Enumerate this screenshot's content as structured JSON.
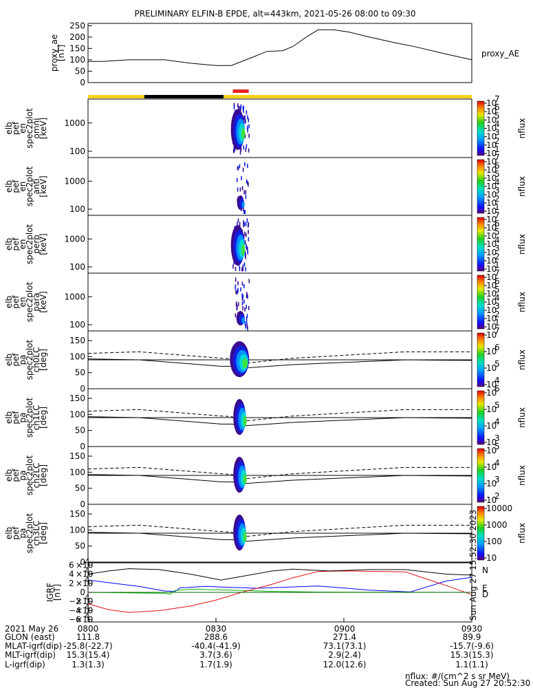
{
  "title": "PRELIMINARY ELFIN-B EPDE, alt=443km, 2021-05-26 08:00 to 09:30",
  "chart_data": [
    {
      "type": "line",
      "panel": "proxy_ae",
      "ylabel_lines": [
        "proxy_ae",
        "[nT]"
      ],
      "right_label": "proxy_AE",
      "ylim": [
        0,
        260
      ],
      "yticks": [
        "0",
        "50",
        "100",
        "150",
        "200",
        "250"
      ],
      "series": [
        {
          "values": [
            [
              0,
              93
            ],
            [
              3,
              93
            ],
            [
              8,
              100
            ],
            [
              15,
              100
            ],
            [
              20,
              85
            ],
            [
              25,
              75
            ],
            [
              28,
              75
            ],
            [
              32,
              110
            ],
            [
              35,
              137
            ],
            [
              38,
              140
            ],
            [
              40,
              158
            ],
            [
              43,
              205
            ],
            [
              45,
              232
            ],
            [
              48,
              232
            ],
            [
              51,
              222
            ],
            [
              55,
              200
            ],
            [
              60,
              175
            ],
            [
              64,
              157
            ],
            [
              70,
              125
            ],
            [
              75,
              100
            ]
          ]
        }
      ],
      "color": "#000000"
    },
    {
      "type": "bar",
      "panel": "orbit-status-bar",
      "segments": [
        {
          "from": 0,
          "to": 11,
          "color": "#f2d21b"
        },
        {
          "from": 11,
          "to": 26.5,
          "color": "#000000"
        },
        {
          "from": 26.5,
          "to": 75,
          "color": "#f2d21b"
        }
      ],
      "marker": {
        "from": 28.3,
        "to": 31.4,
        "color": "#e8251f"
      }
    },
    {
      "type": "heatmap",
      "panel": "spec2plot-omni",
      "ylabel_lines": [
        "elb",
        "pef",
        "en",
        "spec2plot",
        "omni",
        "[keV]"
      ],
      "ylog": true,
      "ylim": [
        60,
        7000
      ],
      "yticks": [
        "100",
        "1000"
      ],
      "colorbar": {
        "label": "nflux",
        "exponents": [
          "1",
          "2",
          "3",
          "4",
          "5",
          "6",
          "7"
        ]
      }
    },
    {
      "type": "heatmap",
      "panel": "spec2plot-anti",
      "ylabel_lines": [
        "elb",
        "pef",
        "en",
        "spec2plot",
        "anti",
        "[keV]"
      ],
      "ylog": true,
      "ylim": [
        60,
        7000
      ],
      "yticks": [
        "100",
        "1000"
      ],
      "colorbar": {
        "label": "nflux",
        "exponents": [
          "1",
          "2",
          "3",
          "4",
          "5",
          "6",
          "7"
        ]
      }
    },
    {
      "type": "heatmap",
      "panel": "spec2plot-perp",
      "ylabel_lines": [
        "elb",
        "pef",
        "en",
        "spec2plot",
        "perp",
        "[keV]"
      ],
      "ylog": true,
      "ylim": [
        60,
        7000
      ],
      "yticks": [
        "100",
        "1000"
      ],
      "colorbar": {
        "label": "nflux",
        "exponents": [
          "1",
          "2",
          "3",
          "4",
          "5",
          "6",
          "7"
        ]
      }
    },
    {
      "type": "heatmap",
      "panel": "spec2plot-para",
      "ylabel_lines": [
        "elb",
        "pef",
        "en",
        "spec2plot",
        "para",
        "[keV]"
      ],
      "ylog": true,
      "ylim": [
        60,
        7000
      ],
      "yticks": [
        "100",
        "1000"
      ],
      "colorbar": {
        "label": "nflux",
        "exponents": [
          "1",
          "2",
          "3",
          "4",
          "5",
          "6",
          "7"
        ]
      }
    },
    {
      "type": "heatmap",
      "panel": "spec2plot-ch0LC",
      "ylabel_lines": [
        "elb",
        "pef",
        "pa",
        "spec2plot",
        "ch0LC",
        "[deg]"
      ],
      "ylim": [
        0,
        180
      ],
      "yticks": [
        "0",
        "50",
        "100",
        "150"
      ],
      "colorbar": {
        "label": "nflux",
        "exponents": [
          "4",
          "5",
          "6",
          "7"
        ]
      }
    },
    {
      "type": "heatmap",
      "panel": "spec2plot-ch1LC",
      "ylabel_lines": [
        "elb",
        "pef",
        "pa",
        "spec2plot",
        "ch1LC",
        "[deg]"
      ],
      "ylim": [
        0,
        180
      ],
      "yticks": [
        "0",
        "50",
        "100",
        "150"
      ],
      "colorbar": {
        "label": "nflux",
        "exponents": [
          "3",
          "4",
          "5",
          "6"
        ]
      }
    },
    {
      "type": "heatmap",
      "panel": "spec2plot-ch2LC",
      "ylabel_lines": [
        "elb",
        "pef",
        "pa",
        "spec2plot",
        "ch2LC",
        "[deg]"
      ],
      "ylim": [
        0,
        180
      ],
      "yticks": [
        "0",
        "50",
        "100",
        "150"
      ],
      "colorbar": {
        "label": "nflux",
        "exponents": [
          "2",
          "3",
          "4",
          "5"
        ]
      }
    },
    {
      "type": "heatmap",
      "panel": "spec2plot-ch3LC",
      "ylabel_lines": [
        "elb",
        "pef",
        "pa",
        "spec2plot",
        "ch3LC",
        "[deg]"
      ],
      "ylim": [
        0,
        180
      ],
      "yticks": [
        "0",
        "50",
        "100",
        "150"
      ],
      "colorbar": {
        "label": "nflux",
        "ticks": [
          "10",
          "100",
          "1000",
          "10000"
        ]
      }
    },
    {
      "type": "line",
      "panel": "IGRF",
      "ylabel_lines": [
        "IGRF",
        "[nT]"
      ],
      "ylim": [
        -65000,
        65000
      ],
      "ytick_mantissas": [
        "−6",
        "−4",
        "−2",
        "0",
        "2",
        "4",
        "6"
      ],
      "side_stamp": "Sun Aug 27 15:52:30 2023",
      "series": [
        {
          "name": "N",
          "color": "#0000ff",
          "values": [
            [
              0,
              27000
            ],
            [
              5,
              20000
            ],
            [
              10,
              13000
            ],
            [
              15,
              3000
            ],
            [
              17,
              2000
            ],
            [
              18,
              10000
            ],
            [
              23,
              13000
            ],
            [
              33,
              9000
            ],
            [
              45,
              14000
            ],
            [
              55,
              5000
            ],
            [
              63,
              1000
            ],
            [
              70,
              25000
            ],
            [
              75,
              33000
            ]
          ]
        },
        {
          "name": "E",
          "color": "#00b000",
          "values": [
            [
              0,
              0
            ],
            [
              15,
              -2000
            ],
            [
              16,
              -4000
            ],
            [
              17,
              4000
            ],
            [
              20,
              7000
            ],
            [
              28,
              5000
            ],
            [
              35,
              2500
            ],
            [
              45,
              500
            ],
            [
              75,
              0
            ]
          ]
        },
        {
          "name": "D",
          "color": "#e01010",
          "values": [
            [
              0,
              -25000
            ],
            [
              4,
              -38000
            ],
            [
              8,
              -44000
            ],
            [
              14,
              -40000
            ],
            [
              20,
              -30000
            ],
            [
              25,
              -17000
            ],
            [
              30,
              0
            ],
            [
              36,
              18000
            ],
            [
              40,
              32000
            ],
            [
              45,
              46000
            ],
            [
              50,
              47000
            ],
            [
              62,
              45000
            ],
            [
              70,
              15000
            ],
            [
              75,
              -5000
            ]
          ]
        },
        {
          "name": "",
          "color": "#000000",
          "values": [
            [
              0,
              40000
            ],
            [
              4,
              47000
            ],
            [
              8,
              52000
            ],
            [
              14,
              50000
            ],
            [
              20,
              40000
            ],
            [
              26,
              27000
            ],
            [
              30,
              35000
            ],
            [
              36,
              47000
            ],
            [
              40,
              51000
            ],
            [
              47,
              47000
            ],
            [
              55,
              50000
            ],
            [
              62,
              50000
            ],
            [
              70,
              40000
            ],
            [
              75,
              38000
            ]
          ]
        },
        {
          "name": "",
          "color": "#006400",
          "values": [
            [
              0,
              0
            ],
            [
              75,
              0
            ]
          ]
        }
      ]
    }
  ],
  "footer": {
    "rows": [
      {
        "label": "2021 May 26",
        "values": [
          "0800",
          "0830",
          "0900",
          "0930"
        ]
      },
      {
        "label": "GLON (east)",
        "values": [
          "111.8",
          "288.6",
          "271.4",
          "89.9"
        ]
      },
      {
        "label": "MLAT-igrf(dip)",
        "values": [
          "-25.8(-22.7)",
          "-40.4(-41.9)",
          "73.1(73.1)",
          "-15.7(-9.6)"
        ]
      },
      {
        "label": "MLT-igrf(dip)",
        "values": [
          "15.3(15.4)",
          "3.7(3.6)",
          "2.9(2.4)",
          "15.3(15.3)"
        ]
      },
      {
        "label": "L-igrf(dip)",
        "values": [
          "1.3(1.3)",
          "1.7(1.9)",
          "12.0(12.6)",
          "1.1(1.1)"
        ]
      }
    ],
    "units_note": "nflux: #/(cm^2 s sr MeV)",
    "created": "Created: Sun Aug 27 20:52:30 2023"
  }
}
